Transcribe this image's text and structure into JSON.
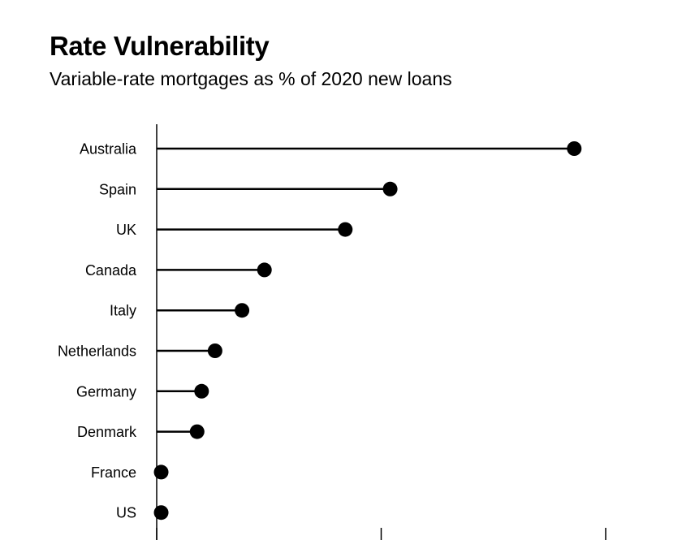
{
  "chart_data": {
    "type": "lollipop",
    "title": "Rate Vulnerability",
    "subtitle": "Variable-rate mortgages as % of 2020 new loans",
    "xlabel": "",
    "ylabel": "",
    "xlim": [
      0,
      100
    ],
    "x_ticks": [
      0,
      50,
      100
    ],
    "grid": false,
    "categories": [
      "Australia",
      "Spain",
      "UK",
      "Canada",
      "Italy",
      "Netherlands",
      "Germany",
      "Denmark",
      "France",
      "US"
    ],
    "values": [
      93,
      52,
      42,
      24,
      19,
      13,
      10,
      9,
      1,
      1
    ],
    "colors": {
      "mark": "#000000",
      "background": "#ffffff"
    }
  }
}
